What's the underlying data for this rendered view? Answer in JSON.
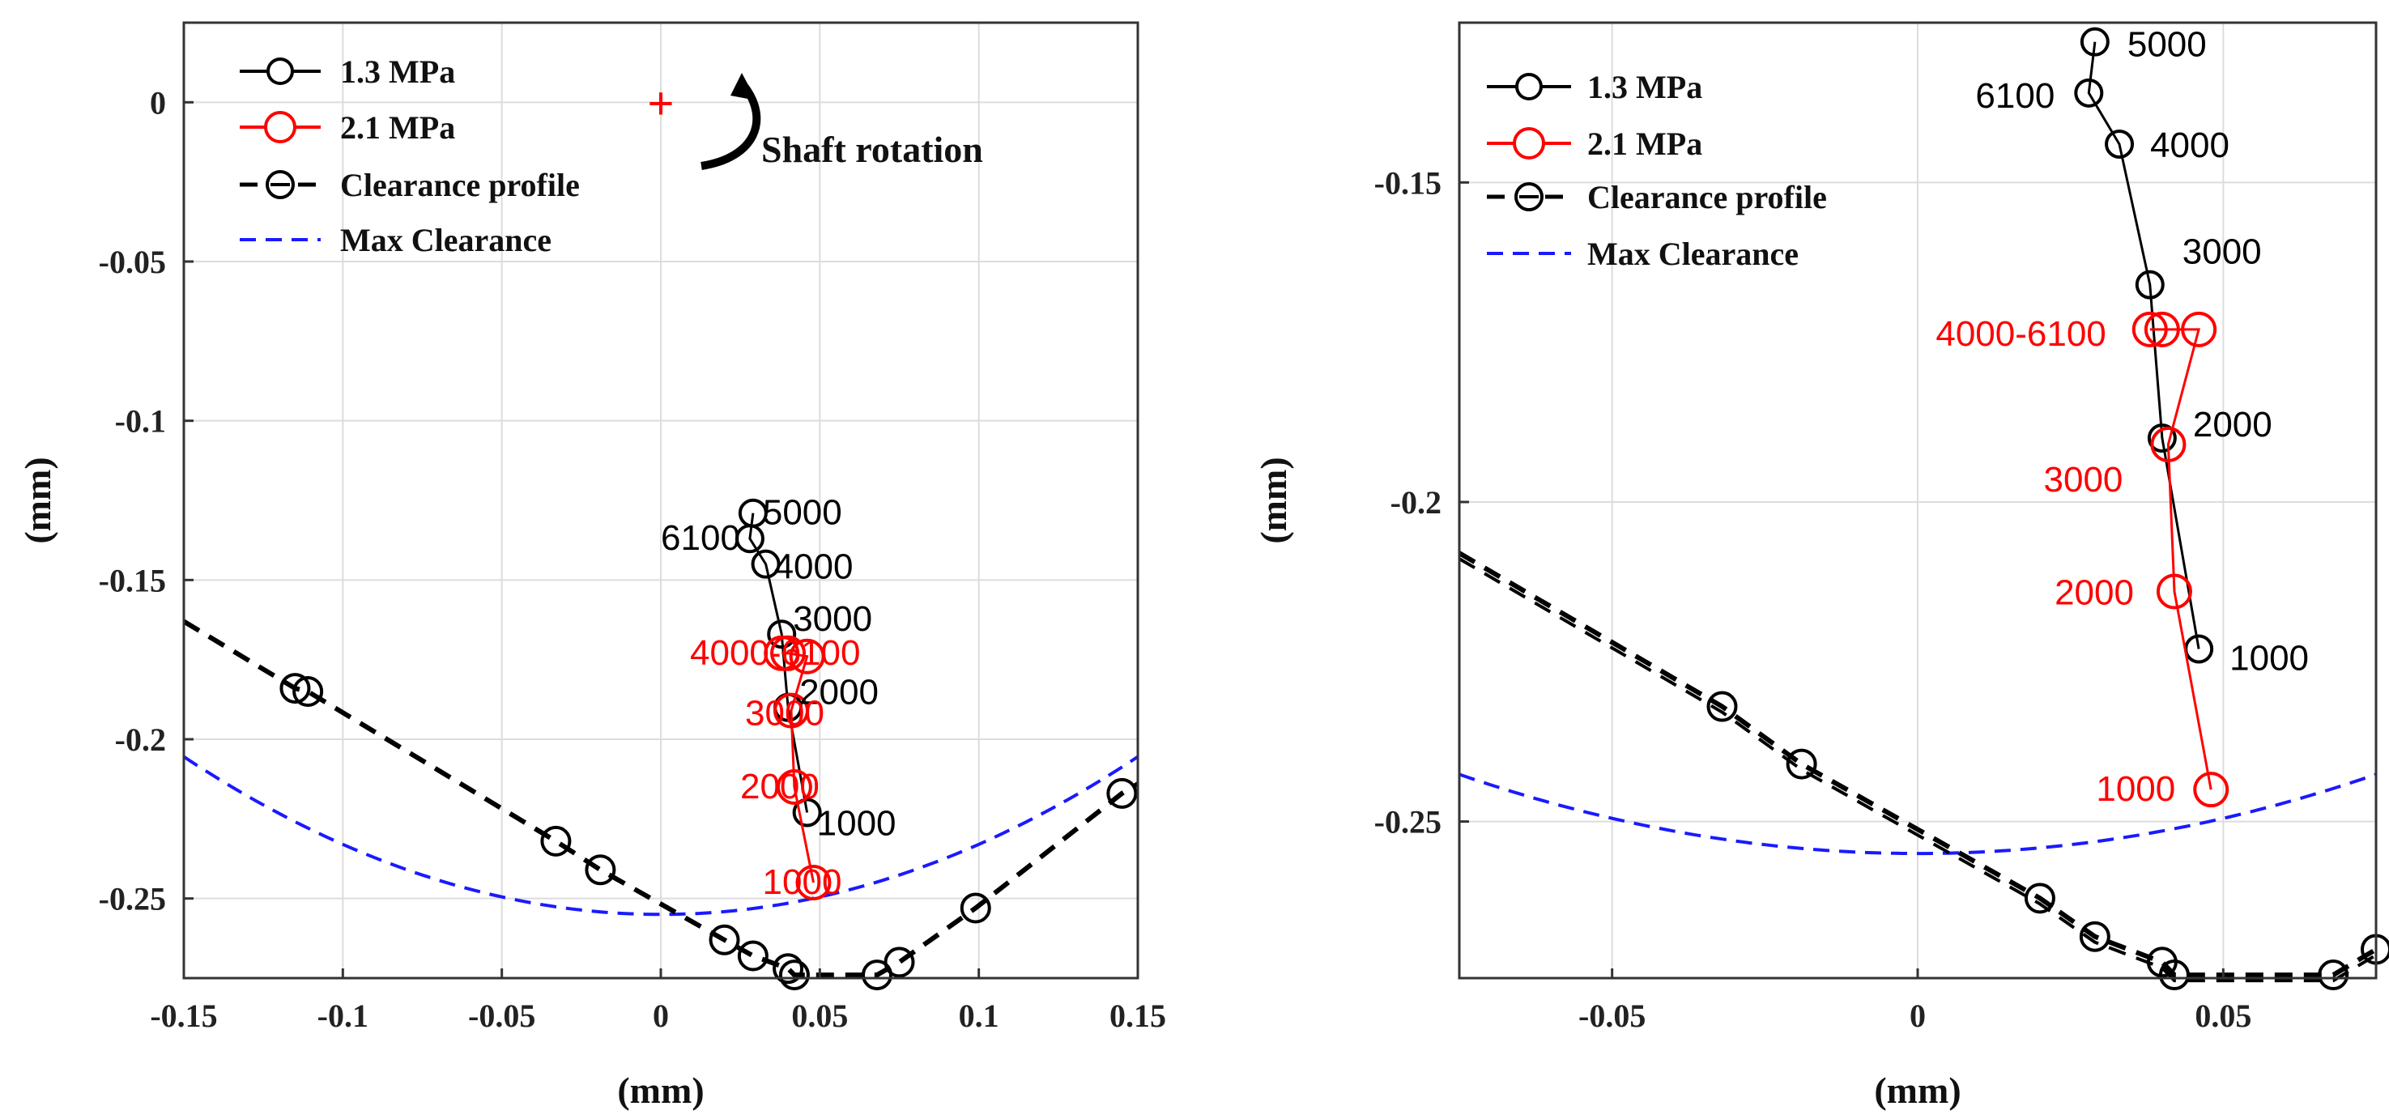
{
  "colors": {
    "p13": "#000000",
    "p21": "#ff0000",
    "clearance": "#000000",
    "max": "#1a1aff",
    "grid": "#dcdcdc",
    "axis": "#333333"
  },
  "chart_data": [
    {
      "type": "line",
      "title": "",
      "xlabel": "(mm)",
      "ylabel": "(mm)",
      "xlim": [
        -0.15,
        0.15
      ],
      "ylim": [
        -0.275,
        0.025
      ],
      "xticks": [
        -0.15,
        -0.1,
        -0.05,
        0,
        0.05,
        0.1,
        0.15
      ],
      "xtick_labels": [
        "-0.15",
        "-0.1",
        "-0.05",
        "0",
        "0.05",
        "0.1",
        "0.15"
      ],
      "yticks": [
        0,
        -0.05,
        -0.1,
        -0.15,
        -0.2,
        -0.25
      ],
      "ytick_labels": [
        "0",
        "-0.05",
        "-0.1",
        "-0.15",
        "-0.2",
        "-0.25"
      ],
      "grid": true,
      "legend_position": "top-left",
      "legend": [
        "1.3 MPa",
        "2.1 MPa",
        "Clearance profile",
        "Max Clearance"
      ],
      "series": [
        {
          "name": "1.3 MPa",
          "x": [
            0.029,
            0.028,
            0.033,
            0.038,
            0.04,
            0.046
          ],
          "y": [
            -0.129,
            -0.137,
            -0.145,
            -0.167,
            -0.19,
            -0.223
          ],
          "labels": [
            "5000",
            "6100",
            "4000",
            "3000",
            "2000",
            "1000"
          ]
        },
        {
          "name": "2.1 MPa",
          "x": [
            0.038,
            0.04,
            0.046,
            0.041,
            0.042,
            0.048
          ],
          "y": [
            -0.173,
            -0.173,
            -0.174,
            -0.191,
            -0.215,
            -0.245
          ],
          "labels": [
            "4000-6100",
            "3000",
            "2000",
            "1000"
          ]
        },
        {
          "name": "Clearance profile",
          "x": [
            -0.15,
            -0.115,
            -0.111,
            -0.033,
            -0.019,
            0.02,
            0.029,
            0.04,
            0.042,
            0.068,
            0.075,
            0.099,
            0.145,
            0.15
          ],
          "y": [
            -0.163,
            -0.184,
            -0.185,
            -0.232,
            -0.241,
            -0.263,
            -0.268,
            -0.272,
            -0.274,
            -0.274,
            -0.27,
            -0.253,
            -0.217,
            -0.214
          ],
          "markers": [
            false,
            true,
            true,
            true,
            true,
            true,
            true,
            true,
            true,
            true,
            true,
            true,
            true,
            false
          ]
        },
        {
          "name": "Max Clearance",
          "function": "y = -0.255 + 2.2*x^2",
          "x_range": [
            -0.15,
            0.15
          ]
        }
      ],
      "annotations": {
        "center_marker": "+",
        "center": [
          0,
          0
        ],
        "rotation_label": "Shaft rotation"
      }
    },
    {
      "type": "line",
      "title": "",
      "xlabel": "(mm)",
      "ylabel": "(mm)",
      "xlim": [
        -0.075,
        0.075
      ],
      "ylim": [
        -0.2745,
        -0.125
      ],
      "xticks": [
        -0.05,
        0,
        0.05
      ],
      "xtick_labels": [
        "-0.05",
        "0",
        "0.05"
      ],
      "yticks": [
        -0.15,
        -0.2,
        -0.25
      ],
      "ytick_labels": [
        "-0.15",
        "-0.2",
        "-0.25"
      ],
      "grid": true,
      "legend_position": "top-left",
      "legend": [
        "1.3 MPa",
        "2.1 MPa",
        "Clearance profile",
        "Max Clearance"
      ],
      "series": [
        {
          "name": "1.3 MPa",
          "x": [
            0.029,
            0.028,
            0.033,
            0.038,
            0.04,
            0.046
          ],
          "y": [
            -0.128,
            -0.136,
            -0.144,
            -0.166,
            -0.19,
            -0.223
          ],
          "labels": [
            "5000",
            "6100",
            "4000",
            "3000",
            "2000",
            "1000"
          ]
        },
        {
          "name": "2.1 MPa",
          "x": [
            0.038,
            0.04,
            0.046,
            0.041,
            0.042,
            0.048
          ],
          "y": [
            -0.173,
            -0.173,
            -0.173,
            -0.191,
            -0.214,
            -0.245
          ],
          "labels": [
            "4000-6100",
            "3000",
            "2000",
            "1000"
          ]
        },
        {
          "name": "Clearance profile",
          "x": [
            -0.075,
            -0.032,
            -0.019,
            0.02,
            0.029,
            0.04,
            0.042,
            0.068,
            0.075
          ],
          "y": [
            -0.208,
            -0.232,
            -0.241,
            -0.262,
            -0.268,
            -0.272,
            -0.274,
            -0.274,
            -0.27
          ],
          "markers": [
            false,
            true,
            true,
            true,
            true,
            true,
            true,
            true,
            true
          ]
        },
        {
          "name": "Max Clearance",
          "function": "y = -0.255 + 2.2*x^2",
          "x_range": [
            -0.075,
            0.075
          ]
        }
      ]
    }
  ]
}
